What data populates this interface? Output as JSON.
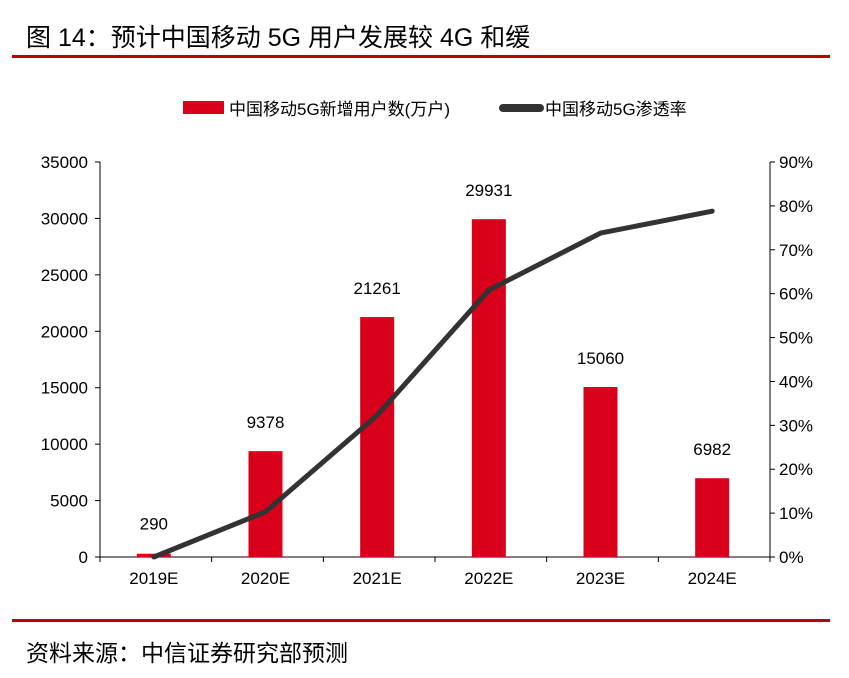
{
  "header": {
    "title": "图 14：预计中国移动 5G 用户发展较 4G 和缓"
  },
  "footer": {
    "source": "资料来源：中信证券研究部预测"
  },
  "colors": {
    "bar": "#d9001b",
    "line": "#333333",
    "rule": "#c00000"
  },
  "chart_data": {
    "type": "bar+line",
    "categories": [
      "2019E",
      "2020E",
      "2021E",
      "2022E",
      "2023E",
      "2024E"
    ],
    "series": [
      {
        "name": "中国移动5G新增用户数(万户)",
        "type": "bar",
        "axis": "left",
        "values": [
          290,
          9378,
          21261,
          29931,
          15060,
          6982
        ],
        "labels": [
          "290",
          "9378",
          "21261",
          "29931",
          "15060",
          "6982"
        ]
      },
      {
        "name": "中国移动5G渗透率",
        "type": "line",
        "axis": "right",
        "values": [
          0.0,
          10.3,
          32.3,
          60.8,
          73.8,
          78.8
        ]
      }
    ],
    "left_axis": {
      "ylim": [
        0,
        35000
      ],
      "ticks": [
        "0",
        "5000",
        "10000",
        "15000",
        "20000",
        "25000",
        "30000",
        "35000"
      ]
    },
    "right_axis": {
      "ylim": [
        0,
        90
      ],
      "ticks": [
        "0%",
        "10%",
        "20%",
        "30%",
        "40%",
        "50%",
        "60%",
        "70%",
        "80%",
        "90%"
      ]
    },
    "legend": "top-center",
    "grid": false
  }
}
